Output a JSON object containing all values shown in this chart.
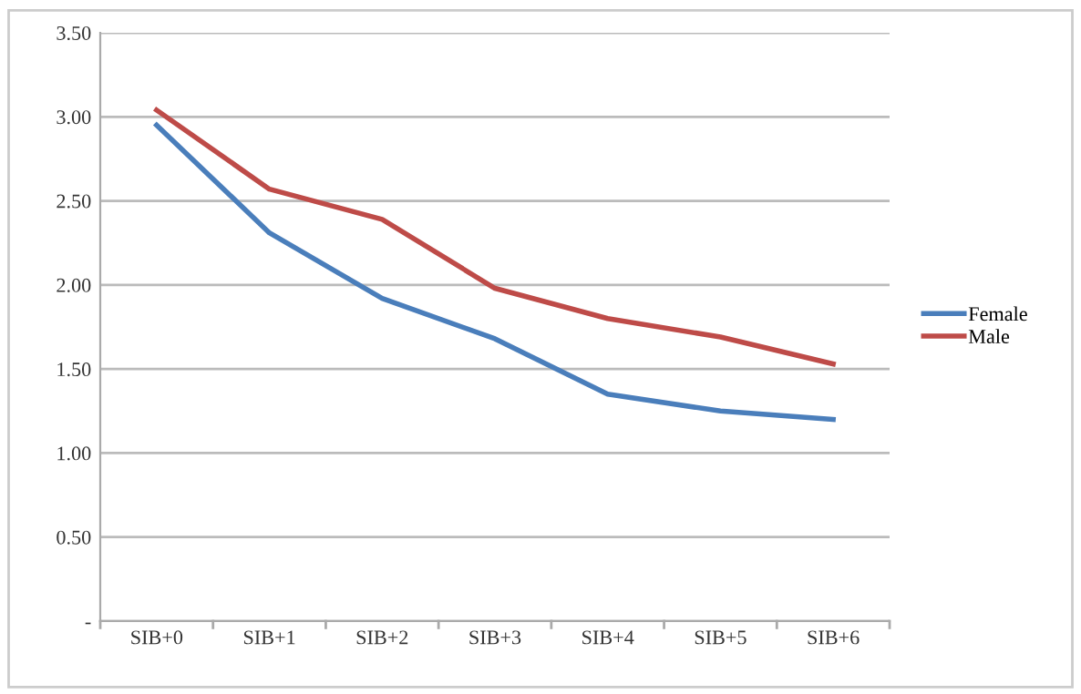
{
  "chart_data": {
    "type": "line",
    "categories": [
      "SIB+0",
      "SIB+1",
      "SIB+2",
      "SIB+3",
      "SIB+4",
      "SIB+5",
      "SIB+6"
    ],
    "series": [
      {
        "name": "Female",
        "color": "#4a7ebb",
        "values": [
          2.95,
          2.31,
          1.92,
          1.68,
          1.35,
          1.25,
          1.2
        ]
      },
      {
        "name": "Male",
        "color": "#be4b48",
        "values": [
          3.04,
          2.57,
          2.39,
          1.98,
          1.8,
          1.69,
          1.53
        ]
      }
    ],
    "ylim": [
      0,
      3.5
    ],
    "yticks": [
      {
        "value": 0,
        "label": "-"
      },
      {
        "value": 0.5,
        "label": "0.50"
      },
      {
        "value": 1,
        "label": "1.00"
      },
      {
        "value": 1.5,
        "label": "1.50"
      },
      {
        "value": 2,
        "label": "2.00"
      },
      {
        "value": 2.5,
        "label": "2.50"
      },
      {
        "value": 3,
        "label": "3.00"
      },
      {
        "value": 3.5,
        "label": "3.50"
      }
    ],
    "grid": "y",
    "legend": "right",
    "marker": "none",
    "line_style": "solid"
  }
}
